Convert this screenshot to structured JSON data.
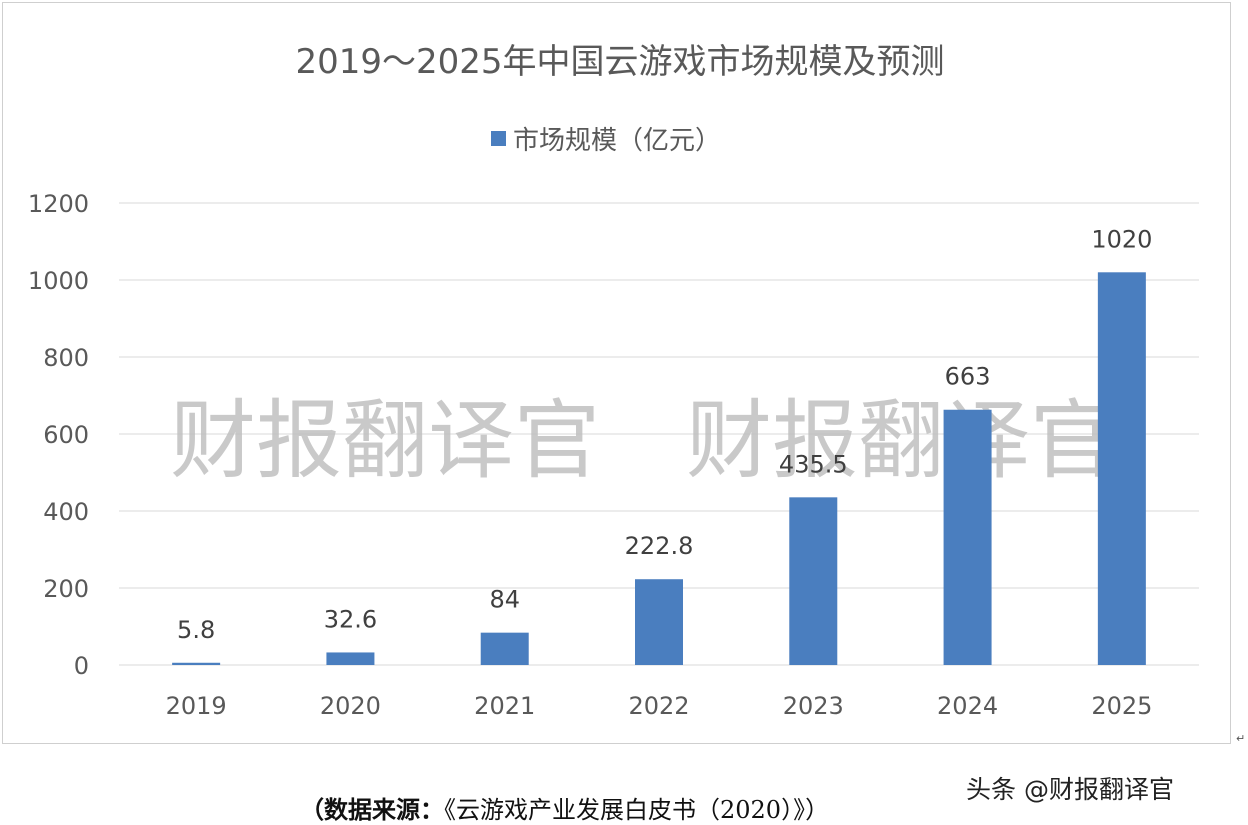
{
  "chart_data": {
    "type": "bar",
    "title": "2019～2025年中国云游戏市场规模及预测",
    "legend": "top-center",
    "categories": [
      "2019",
      "2020",
      "2021",
      "2022",
      "2023",
      "2024",
      "2025"
    ],
    "series": [
      {
        "name": "市场规模（亿元）",
        "values": [
          5.8,
          32.6,
          84,
          222.8,
          435.5,
          663,
          1020
        ]
      }
    ],
    "data_labels": [
      "5.8",
      "32.6",
      "84",
      "222.8",
      "435.5",
      "663",
      "1020"
    ],
    "yticks": [
      "0",
      "200",
      "400",
      "600",
      "800",
      "1000",
      "1200"
    ],
    "ylim": [
      0,
      1200
    ],
    "grid": true,
    "colors": {
      "bar": "#4a7ebf",
      "grid": "#d9d9d9",
      "text": "#595959",
      "watermark": "#bfbfbf"
    }
  },
  "watermark": "财报翻译官　财报翻译官",
  "footer": {
    "source_lead": "（数据来源：",
    "source_text": "《云游戏产业发展白皮书（2020）》）",
    "attribution": "头条 @财报翻译官",
    "edge_mark": "↵"
  }
}
